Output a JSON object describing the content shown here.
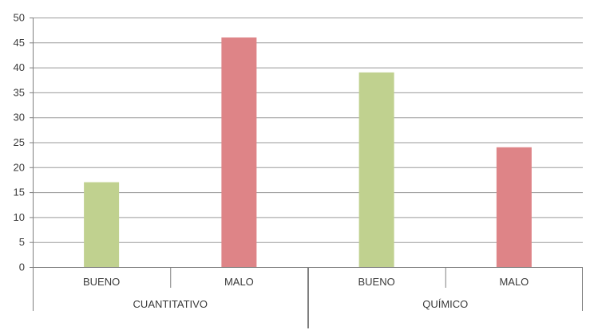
{
  "chart_data": {
    "type": "bar",
    "title": "",
    "xlabel": "",
    "ylabel": "",
    "ylim": [
      0,
      50
    ],
    "yticks": [
      0,
      5,
      10,
      15,
      20,
      25,
      30,
      35,
      40,
      45,
      50
    ],
    "grid": true,
    "legend": "none",
    "groups": [
      {
        "label": "CUANTITATIVO",
        "bars": [
          {
            "label": "BUENO",
            "value": 17,
            "color": "#c0d18f"
          },
          {
            "label": "MALO",
            "value": 46,
            "color": "#de8487"
          }
        ]
      },
      {
        "label": "QUÍMICO",
        "bars": [
          {
            "label": "BUENO",
            "value": 39,
            "color": "#c0d18f"
          },
          {
            "label": "MALO",
            "value": 24,
            "color": "#de8487"
          }
        ]
      }
    ]
  }
}
